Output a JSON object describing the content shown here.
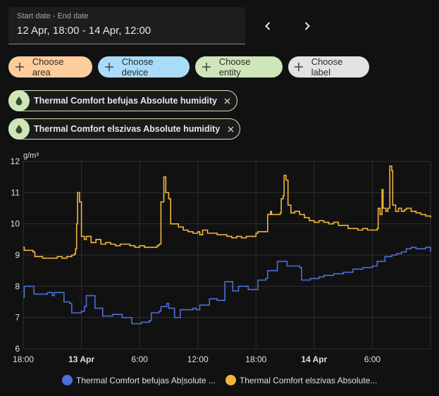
{
  "date_range": {
    "label": "Start date - End date",
    "value": "12 Apr, 18:00 - 14 Apr, 12:00"
  },
  "nav": {
    "prev_icon": "chevron-left-icon",
    "next_icon": "chevron-right-icon"
  },
  "targets": [
    {
      "label": "Choose area",
      "color": "#ffcd9c"
    },
    {
      "label": "Choose device",
      "color": "#a8dcf8"
    },
    {
      "label": "Choose entity",
      "color": "#cfe6b8"
    },
    {
      "label": "Choose label",
      "color": "#e2e2e2"
    }
  ],
  "entities": [
    {
      "name": "Thermal Comfort befujas Absolute humidity",
      "icon": "water-drop-icon"
    },
    {
      "name": "Thermal Comfort elszivas Absolute humidity",
      "icon": "water-drop-icon"
    }
  ],
  "chart_data": {
    "type": "line",
    "ylabel": "g/m³",
    "ylim": [
      6,
      12
    ],
    "yticks": [
      6,
      7,
      8,
      9,
      10,
      11,
      12
    ],
    "xlim": [
      0,
      42
    ],
    "xticks": [
      {
        "x": 0,
        "label": "18:00",
        "bold": false
      },
      {
        "x": 6,
        "label": "13 Apr",
        "bold": true
      },
      {
        "x": 12,
        "label": "6:00",
        "bold": false
      },
      {
        "x": 18,
        "label": "12:00",
        "bold": false
      },
      {
        "x": 24,
        "label": "18:00",
        "bold": false
      },
      {
        "x": 30,
        "label": "14 Apr",
        "bold": true
      },
      {
        "x": 36,
        "label": "6:00",
        "bold": false
      }
    ],
    "grid": true,
    "series": [
      {
        "name": "Thermal Comfort befujas Absolute humidity",
        "legend_label": "Thermal Comfort befujas Ab|solute ...",
        "color": "#4a6fdc",
        "points": [
          [
            0,
            7.65
          ],
          [
            0.1,
            8.0
          ],
          [
            1.0,
            8.0
          ],
          [
            1.1,
            7.75
          ],
          [
            2.5,
            7.8
          ],
          [
            3.0,
            7.7
          ],
          [
            3.2,
            7.8
          ],
          [
            4.0,
            7.8
          ],
          [
            4.2,
            7.5
          ],
          [
            4.8,
            7.45
          ],
          [
            5.0,
            7.15
          ],
          [
            5.8,
            7.15
          ],
          [
            6.0,
            7.2
          ],
          [
            6.3,
            7.35
          ],
          [
            6.5,
            7.7
          ],
          [
            7.2,
            7.7
          ],
          [
            7.4,
            7.3
          ],
          [
            8.0,
            7.3
          ],
          [
            8.2,
            7.05
          ],
          [
            9.0,
            7.05
          ],
          [
            9.2,
            7.1
          ],
          [
            10.0,
            7.1
          ],
          [
            10.2,
            7.0
          ],
          [
            11.0,
            7.0
          ],
          [
            11.2,
            6.8
          ],
          [
            12.0,
            6.8
          ],
          [
            12.2,
            6.85
          ],
          [
            13.0,
            6.9
          ],
          [
            13.2,
            7.15
          ],
          [
            14.0,
            7.2
          ],
          [
            14.2,
            7.35
          ],
          [
            14.8,
            7.45
          ],
          [
            15.0,
            7.3
          ],
          [
            15.4,
            7.3
          ],
          [
            15.6,
            7.0
          ],
          [
            16.0,
            7.0
          ],
          [
            16.2,
            7.25
          ],
          [
            17.5,
            7.3
          ],
          [
            17.8,
            7.25
          ],
          [
            18.0,
            7.25
          ],
          [
            18.2,
            7.4
          ],
          [
            19.0,
            7.4
          ],
          [
            19.2,
            7.6
          ],
          [
            19.8,
            7.6
          ],
          [
            20.0,
            7.55
          ],
          [
            20.6,
            7.55
          ],
          [
            20.8,
            8.15
          ],
          [
            21.4,
            8.15
          ],
          [
            21.6,
            7.85
          ],
          [
            22.0,
            7.85
          ],
          [
            22.2,
            8.0
          ],
          [
            23.0,
            8.0
          ],
          [
            23.2,
            7.9
          ],
          [
            24.0,
            7.9
          ],
          [
            24.2,
            8.2
          ],
          [
            25.0,
            8.25
          ],
          [
            25.2,
            8.5
          ],
          [
            26.0,
            8.5
          ],
          [
            26.2,
            8.8
          ],
          [
            27.0,
            8.8
          ],
          [
            27.2,
            8.65
          ],
          [
            28.5,
            8.6
          ],
          [
            28.7,
            8.2
          ],
          [
            29.4,
            8.2
          ],
          [
            29.6,
            8.25
          ],
          [
            30.5,
            8.3
          ],
          [
            31.0,
            8.35
          ],
          [
            32.0,
            8.4
          ],
          [
            33.0,
            8.45
          ],
          [
            34.0,
            8.55
          ],
          [
            35.0,
            8.6
          ],
          [
            36.0,
            8.65
          ],
          [
            36.5,
            8.8
          ],
          [
            37.0,
            8.8
          ],
          [
            37.3,
            8.95
          ],
          [
            38.0,
            9.0
          ],
          [
            38.5,
            9.05
          ],
          [
            39.0,
            9.1
          ],
          [
            39.5,
            9.2
          ],
          [
            40.0,
            9.25
          ],
          [
            40.5,
            9.2
          ],
          [
            41.0,
            9.2
          ],
          [
            41.5,
            9.25
          ],
          [
            42,
            9.1
          ]
        ]
      },
      {
        "name": "Thermal Comfort elszivas Absolute humidity",
        "legend_label": "Thermal Comfort elszivas Absolute...",
        "color": "#f2b43c",
        "points": [
          [
            0,
            9.25
          ],
          [
            0.1,
            9.15
          ],
          [
            1.0,
            9.1
          ],
          [
            1.2,
            8.95
          ],
          [
            2.0,
            8.9
          ],
          [
            3.0,
            8.9
          ],
          [
            3.5,
            8.95
          ],
          [
            4.0,
            8.9
          ],
          [
            4.5,
            8.95
          ],
          [
            5.0,
            9.0
          ],
          [
            5.3,
            9.05
          ],
          [
            5.4,
            9.2
          ],
          [
            5.5,
            10.0
          ],
          [
            5.6,
            11.0
          ],
          [
            5.8,
            10.7
          ],
          [
            6.0,
            9.6
          ],
          [
            6.3,
            9.5
          ],
          [
            6.5,
            9.6
          ],
          [
            7.0,
            9.4
          ],
          [
            7.5,
            9.5
          ],
          [
            8.0,
            9.35
          ],
          [
            8.5,
            9.4
          ],
          [
            9.0,
            9.35
          ],
          [
            9.5,
            9.3
          ],
          [
            10.0,
            9.35
          ],
          [
            11.0,
            9.3
          ],
          [
            11.5,
            9.25
          ],
          [
            12.0,
            9.3
          ],
          [
            12.5,
            9.25
          ],
          [
            13.5,
            9.25
          ],
          [
            13.8,
            9.3
          ],
          [
            14.0,
            9.35
          ],
          [
            14.2,
            10.7
          ],
          [
            14.4,
            10.7
          ],
          [
            14.5,
            11.5
          ],
          [
            14.7,
            11.0
          ],
          [
            15.0,
            10.8
          ],
          [
            15.2,
            10.0
          ],
          [
            16.0,
            9.9
          ],
          [
            16.5,
            9.8
          ],
          [
            17.0,
            9.75
          ],
          [
            17.5,
            9.7
          ],
          [
            18.0,
            9.75
          ],
          [
            18.2,
            9.65
          ],
          [
            18.5,
            9.8
          ],
          [
            19.0,
            9.7
          ],
          [
            20.0,
            9.65
          ],
          [
            21.0,
            9.6
          ],
          [
            21.5,
            9.55
          ],
          [
            22.0,
            9.6
          ],
          [
            22.5,
            9.55
          ],
          [
            23.0,
            9.6
          ],
          [
            24.0,
            9.7
          ],
          [
            24.2,
            9.75
          ],
          [
            25.0,
            9.75
          ],
          [
            25.2,
            10.3
          ],
          [
            25.5,
            10.4
          ],
          [
            25.6,
            10.3
          ],
          [
            26.0,
            10.3
          ],
          [
            26.5,
            10.35
          ],
          [
            26.6,
            10.8
          ],
          [
            26.8,
            10.9
          ],
          [
            26.9,
            11.55
          ],
          [
            27.1,
            11.4
          ],
          [
            27.3,
            10.6
          ],
          [
            27.6,
            10.35
          ],
          [
            28.0,
            10.4
          ],
          [
            28.5,
            10.3
          ],
          [
            29.0,
            10.2
          ],
          [
            29.5,
            10.1
          ],
          [
            30.0,
            10.05
          ],
          [
            30.5,
            10.1
          ],
          [
            31.0,
            10.05
          ],
          [
            31.5,
            10.0
          ],
          [
            32.0,
            10.05
          ],
          [
            32.5,
            9.95
          ],
          [
            33.0,
            9.95
          ],
          [
            33.5,
            9.85
          ],
          [
            34.0,
            9.85
          ],
          [
            34.5,
            9.8
          ],
          [
            35.0,
            9.85
          ],
          [
            35.5,
            9.8
          ],
          [
            36.0,
            9.8
          ],
          [
            36.5,
            9.85
          ],
          [
            36.6,
            10.5
          ],
          [
            36.8,
            10.3
          ],
          [
            37.0,
            11.1
          ],
          [
            37.1,
            10.5
          ],
          [
            37.4,
            10.4
          ],
          [
            37.6,
            10.5
          ],
          [
            37.8,
            11.85
          ],
          [
            38.0,
            11.7
          ],
          [
            38.1,
            10.6
          ],
          [
            38.4,
            10.4
          ],
          [
            38.7,
            10.5
          ],
          [
            39.0,
            10.4
          ],
          [
            39.3,
            10.45
          ],
          [
            39.5,
            10.5
          ],
          [
            40.0,
            10.4
          ],
          [
            40.5,
            10.35
          ],
          [
            41.0,
            10.3
          ],
          [
            41.5,
            10.25
          ],
          [
            42,
            10.2
          ]
        ]
      }
    ]
  }
}
